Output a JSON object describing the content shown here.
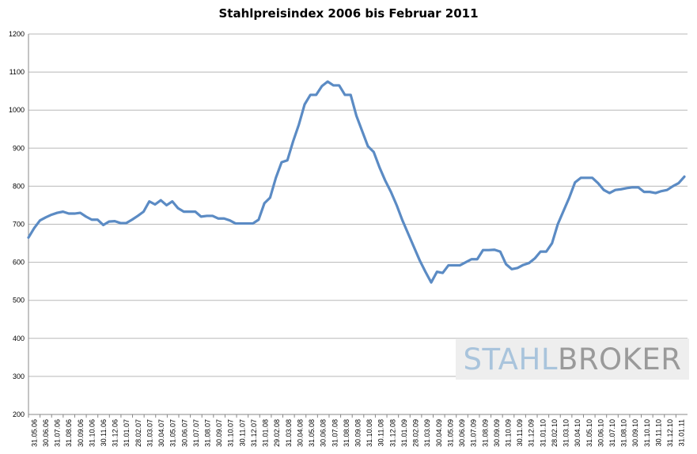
{
  "chart_data": {
    "type": "line",
    "title": "Stahlpreisindex 2006 bis Februar 2011",
    "xlabel": "",
    "ylabel": "",
    "ylim": [
      200,
      1200
    ],
    "yticks": [
      200,
      300,
      400,
      500,
      600,
      700,
      800,
      900,
      1000,
      1100,
      1200
    ],
    "grid": true,
    "legend": "none",
    "line_color": "#5b8bc4",
    "x_ticks": [
      "31.05.06",
      "30.06.06",
      "31.07.06",
      "31.08.06",
      "30.09.06",
      "31.10.06",
      "30.11.06",
      "31.12.06",
      "31.01.07",
      "28.02.07",
      "31.03.07",
      "30.04.07",
      "31.05.07",
      "30.06.07",
      "31.07.07",
      "31.08.07",
      "30.09.07",
      "31.10.07",
      "30.11.07",
      "31.12.07",
      "31.01.08",
      "29.02.08",
      "31.03.08",
      "30.04.08",
      "31.05.08",
      "30.06.08",
      "31.07.08",
      "31.08.08",
      "30.09.08",
      "31.10.08",
      "30.11.08",
      "31.12.08",
      "31.01.09",
      "28.02.09",
      "31.03.09",
      "30.04.09",
      "31.05.09",
      "30.06.09",
      "31.07.09",
      "31.08.09",
      "30.09.09",
      "31.10.09",
      "30.11.09",
      "31.12.09",
      "31.01.10",
      "28.02.10",
      "31.03.10",
      "30.04.10",
      "31.05.10",
      "30.06.10",
      "31.07.10",
      "31.08.10",
      "30.09.10",
      "31.10.10",
      "30.11.10",
      "31.12.10",
      "31.01.11"
    ],
    "series": [
      {
        "values": [
          665,
          690,
          710,
          718,
          725,
          730,
          733,
          728,
          728,
          730,
          720,
          712,
          712,
          698,
          707,
          708,
          703,
          703,
          712,
          722,
          733,
          760,
          752,
          763,
          750,
          760,
          742,
          733,
          733,
          733,
          720,
          722,
          722,
          715,
          715,
          710,
          702,
          702,
          702,
          702,
          712,
          755,
          770,
          822,
          863,
          868,
          918,
          962,
          1015,
          1040,
          1040,
          1063,
          1075,
          1065,
          1065,
          1040,
          1040,
          985,
          945,
          905,
          890,
          850,
          815,
          785,
          750,
          710,
          675,
          640,
          605,
          575,
          547,
          575,
          572,
          592,
          592,
          592,
          600,
          608,
          608,
          632,
          632,
          633,
          628,
          595,
          582,
          585,
          593,
          598,
          610,
          628,
          628,
          650,
          700,
          735,
          770,
          810,
          822,
          822,
          822,
          808,
          790,
          782,
          790,
          792,
          795,
          797,
          797,
          785,
          785,
          782,
          787,
          790,
          800,
          808,
          825
        ]
      }
    ]
  },
  "watermark": {
    "part1": "STAHL",
    "part2": "BROKER"
  }
}
